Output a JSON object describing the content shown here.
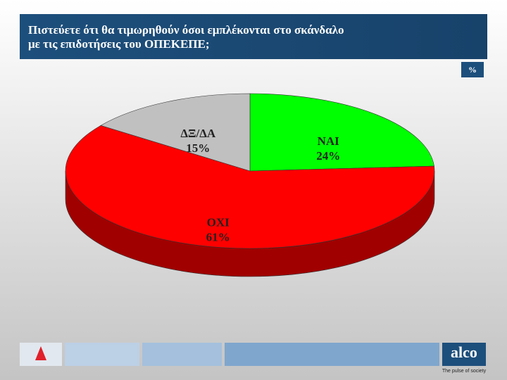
{
  "chart_data": {
    "type": "pie3d",
    "title": [
      "Πιστεύετε ότι θα τιμωρηθούν όσοι εμπλέκονται στο σκάνδαλο",
      "με τις επιδοτήσεις του ΟΠΕΚΕΠΕ;"
    ],
    "unit": "%",
    "categories": [
      "ΝΑΙ",
      "ΟΧΙ",
      "ΔΞ/ΔΑ"
    ],
    "values": [
      24,
      61,
      15
    ],
    "value_labels": [
      "24%",
      "61%",
      "15%"
    ],
    "colors": [
      "#00ff00",
      "#ff0000",
      "#c0c0c0"
    ],
    "side_colors": [
      "#00a000",
      "#a00000",
      "#8a8a8a"
    ]
  },
  "footer": {
    "brand": "alco",
    "tagline": "The pulse of society"
  }
}
